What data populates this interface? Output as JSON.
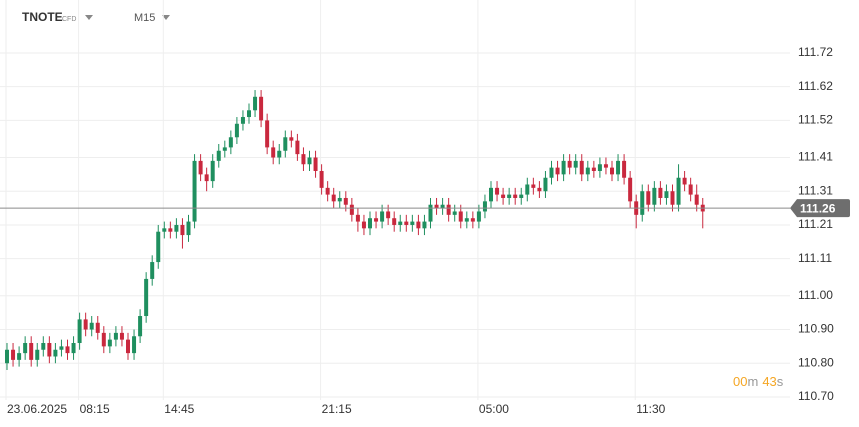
{
  "header": {
    "symbol": "TNOTE",
    "badge": "CFD",
    "interval": "M15"
  },
  "timer": {
    "minutes": "00",
    "minutes_unit": "m",
    "seconds": "43",
    "seconds_unit": "s"
  },
  "chart_data": {
    "type": "candlestick",
    "categories": [
      "23.06.2025",
      null,
      null,
      null,
      null,
      null,
      null,
      null,
      null,
      null,
      null,
      null,
      "08:15",
      null,
      null,
      null,
      null,
      null,
      null,
      null,
      null,
      null,
      null,
      null,
      null,
      null,
      "14:45",
      null,
      null,
      null,
      null,
      null,
      null,
      null,
      null,
      null,
      null,
      null,
      null,
      null,
      null,
      null,
      null,
      null,
      null,
      null,
      null,
      null,
      null,
      null,
      null,
      null,
      "21:15",
      null,
      null,
      null,
      null,
      null,
      null,
      null,
      null,
      null,
      null,
      null,
      null,
      null,
      null,
      null,
      null,
      null,
      null,
      null,
      null,
      null,
      null,
      null,
      null,
      null,
      "05:00",
      null,
      null,
      null,
      null,
      null,
      null,
      null,
      null,
      null,
      null,
      null,
      null,
      null,
      null,
      null,
      null,
      null,
      null,
      null,
      null,
      null,
      null,
      null,
      null,
      null,
      "11:30",
      null,
      null,
      null,
      null,
      null,
      null,
      null,
      null,
      null,
      null,
      null
    ],
    "open": [
      110.8,
      110.84,
      110.81,
      110.83,
      110.86,
      110.81,
      110.84,
      110.86,
      110.82,
      110.84,
      110.85,
      110.83,
      110.86,
      110.93,
      110.9,
      110.92,
      110.89,
      110.85,
      110.87,
      110.89,
      110.87,
      110.83,
      110.88,
      110.94,
      111.05,
      111.1,
      111.19,
      111.2,
      111.19,
      111.21,
      111.18,
      111.22,
      111.4,
      111.36,
      111.34,
      111.4,
      111.43,
      111.44,
      111.47,
      111.51,
      111.53,
      111.55,
      111.59,
      111.52,
      111.44,
      111.41,
      111.43,
      111.47,
      111.46,
      111.42,
      111.39,
      111.41,
      111.37,
      111.32,
      111.3,
      111.28,
      111.29,
      111.27,
      111.24,
      111.22,
      111.2,
      111.23,
      111.22,
      111.25,
      111.23,
      111.21,
      111.22,
      111.21,
      111.22,
      111.2,
      111.22,
      111.27,
      111.26,
      111.27,
      111.24,
      111.25,
      111.22,
      111.23,
      111.22,
      111.25,
      111.28,
      111.32,
      111.3,
      111.29,
      111.3,
      111.29,
      111.3,
      111.33,
      111.32,
      111.31,
      111.35,
      111.38,
      111.36,
      111.4,
      111.38,
      111.4,
      111.36,
      111.38,
      111.37,
      111.39,
      111.38,
      111.36,
      111.4,
      111.35,
      111.28,
      111.24,
      111.31,
      111.27,
      111.32,
      111.29,
      111.31,
      111.27,
      111.35,
      111.33,
      111.3,
      111.27
    ],
    "high": [
      110.86,
      110.86,
      110.85,
      110.88,
      110.88,
      110.86,
      110.88,
      110.88,
      110.86,
      110.87,
      110.87,
      110.88,
      110.95,
      110.95,
      110.94,
      110.94,
      110.91,
      110.89,
      110.91,
      110.91,
      110.89,
      110.9,
      110.96,
      111.07,
      111.12,
      111.21,
      111.22,
      111.22,
      111.23,
      111.23,
      111.24,
      111.42,
      111.42,
      111.38,
      111.42,
      111.45,
      111.46,
      111.49,
      111.53,
      111.55,
      111.57,
      111.61,
      111.61,
      111.54,
      111.46,
      111.45,
      111.49,
      111.49,
      111.48,
      111.44,
      111.43,
      111.43,
      111.39,
      111.34,
      111.32,
      111.31,
      111.31,
      111.29,
      111.26,
      111.24,
      111.25,
      111.25,
      111.27,
      111.27,
      111.25,
      111.24,
      111.24,
      111.24,
      111.24,
      111.24,
      111.29,
      111.29,
      111.29,
      111.29,
      111.27,
      111.27,
      111.25,
      111.25,
      111.27,
      111.3,
      111.34,
      111.34,
      111.32,
      111.32,
      111.32,
      111.32,
      111.35,
      111.35,
      111.34,
      111.37,
      111.4,
      111.4,
      111.42,
      111.42,
      111.42,
      111.42,
      111.4,
      111.4,
      111.41,
      111.41,
      111.4,
      111.42,
      111.42,
      111.37,
      111.3,
      111.33,
      111.33,
      111.34,
      111.34,
      111.33,
      111.33,
      111.39,
      111.37,
      111.35,
      111.33,
      111.29
    ],
    "low": [
      110.78,
      110.79,
      110.79,
      110.81,
      110.79,
      110.79,
      110.82,
      110.8,
      110.8,
      110.82,
      110.81,
      110.81,
      110.84,
      110.88,
      110.88,
      110.87,
      110.83,
      110.83,
      110.85,
      110.85,
      110.81,
      110.81,
      110.86,
      110.92,
      111.03,
      111.08,
      111.17,
      111.17,
      111.17,
      111.14,
      111.16,
      111.2,
      111.34,
      111.31,
      111.32,
      111.38,
      111.41,
      111.42,
      111.45,
      111.49,
      111.51,
      111.53,
      111.5,
      111.42,
      111.39,
      111.39,
      111.41,
      111.44,
      111.4,
      111.37,
      111.37,
      111.35,
      111.3,
      111.28,
      111.26,
      111.26,
      111.25,
      111.22,
      111.19,
      111.18,
      111.18,
      111.2,
      111.2,
      111.21,
      111.19,
      111.19,
      111.19,
      111.19,
      111.18,
      111.18,
      111.2,
      111.24,
      111.24,
      111.22,
      111.22,
      111.2,
      111.2,
      111.2,
      111.2,
      111.23,
      111.26,
      111.28,
      111.27,
      111.27,
      111.27,
      111.27,
      111.28,
      111.3,
      111.29,
      111.29,
      111.33,
      111.34,
      111.34,
      111.36,
      111.36,
      111.34,
      111.34,
      111.35,
      111.35,
      111.36,
      111.34,
      111.34,
      111.33,
      111.26,
      111.2,
      111.22,
      111.25,
      111.25,
      111.27,
      111.27,
      111.25,
      111.25,
      111.31,
      111.28,
      111.25,
      111.2
    ],
    "close": [
      110.84,
      110.81,
      110.83,
      110.86,
      110.81,
      110.84,
      110.86,
      110.82,
      110.84,
      110.85,
      110.83,
      110.86,
      110.93,
      110.9,
      110.92,
      110.89,
      110.85,
      110.87,
      110.89,
      110.87,
      110.83,
      110.88,
      110.94,
      111.05,
      111.1,
      111.19,
      111.2,
      111.19,
      111.21,
      111.18,
      111.22,
      111.4,
      111.36,
      111.34,
      111.4,
      111.43,
      111.44,
      111.47,
      111.51,
      111.53,
      111.55,
      111.59,
      111.52,
      111.44,
      111.41,
      111.43,
      111.47,
      111.46,
      111.42,
      111.39,
      111.41,
      111.37,
      111.32,
      111.3,
      111.28,
      111.29,
      111.27,
      111.24,
      111.22,
      111.2,
      111.23,
      111.22,
      111.25,
      111.23,
      111.21,
      111.22,
      111.21,
      111.22,
      111.2,
      111.22,
      111.27,
      111.26,
      111.27,
      111.24,
      111.25,
      111.22,
      111.23,
      111.22,
      111.25,
      111.28,
      111.32,
      111.3,
      111.29,
      111.3,
      111.29,
      111.3,
      111.33,
      111.32,
      111.31,
      111.35,
      111.38,
      111.36,
      111.4,
      111.38,
      111.4,
      111.36,
      111.38,
      111.37,
      111.39,
      111.38,
      111.36,
      111.4,
      111.35,
      111.28,
      111.24,
      111.31,
      111.27,
      111.32,
      111.29,
      111.31,
      111.27,
      111.35,
      111.33,
      111.3,
      111.27,
      111.25
    ],
    "up_color": "#1f8f5f",
    "down_color": "#c9283e",
    "current_price": 111.26,
    "ylim": [
      110.691,
      111.877
    ],
    "yticks": [
      111.72,
      111.62,
      111.52,
      111.41,
      111.31,
      111.21,
      111.11,
      {
        "value": 111.0,
        "label": "111.00"
      },
      {
        "value": 110.9,
        "label": "110.90"
      },
      {
        "value": 110.8,
        "label": "110.80"
      },
      {
        "value": 110.7,
        "label": "110.70"
      }
    ],
    "grid": true
  }
}
